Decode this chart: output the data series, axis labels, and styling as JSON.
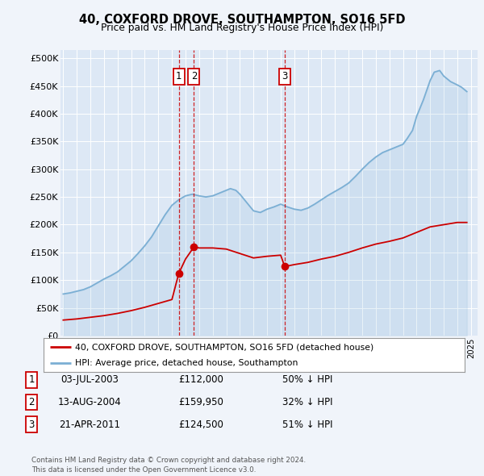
{
  "title": "40, COXFORD DROVE, SOUTHAMPTON, SO16 5FD",
  "subtitle": "Price paid vs. HM Land Registry's House Price Index (HPI)",
  "plot_bg_color": "#dde8f5",
  "fig_bg_color": "#f0f4fa",
  "yticks": [
    0,
    50000,
    100000,
    150000,
    200000,
    250000,
    300000,
    350000,
    400000,
    450000,
    500000
  ],
  "ytick_labels": [
    "£0",
    "£50K",
    "£100K",
    "£150K",
    "£200K",
    "£250K",
    "£300K",
    "£350K",
    "£400K",
    "£450K",
    "£500K"
  ],
  "xlim_start": 1994.8,
  "xlim_end": 2025.5,
  "ylim_min": 0,
  "ylim_max": 515000,
  "sales": [
    {
      "label": "1",
      "year": 2003.5,
      "price": 112000
    },
    {
      "label": "2",
      "year": 2004.62,
      "price": 159950
    },
    {
      "label": "3",
      "year": 2011.3,
      "price": 124500
    }
  ],
  "legend_house_label": "40, COXFORD DROVE, SOUTHAMPTON, SO16 5FD (detached house)",
  "legend_hpi_label": "HPI: Average price, detached house, Southampton",
  "table_rows": [
    {
      "num": "1",
      "date": "03-JUL-2003",
      "price": "£112,000",
      "hpi": "50% ↓ HPI"
    },
    {
      "num": "2",
      "date": "13-AUG-2004",
      "price": "£159,950",
      "hpi": "32% ↓ HPI"
    },
    {
      "num": "3",
      "date": "21-APR-2011",
      "price": "£124,500",
      "hpi": "51% ↓ HPI"
    }
  ],
  "footer": "Contains HM Land Registry data © Crown copyright and database right 2024.\nThis data is licensed under the Open Government Licence v3.0.",
  "house_line_color": "#cc0000",
  "hpi_line_color": "#7bafd4",
  "hpi_years": [
    1995,
    1995.5,
    1996,
    1996.5,
    1997,
    1997.5,
    1998,
    1998.5,
    1999,
    1999.5,
    2000,
    2000.5,
    2001,
    2001.5,
    2002,
    2002.5,
    2003,
    2003.5,
    2004,
    2004.5,
    2005,
    2005.5,
    2006,
    2006.5,
    2007,
    2007.3,
    2007.7,
    2008,
    2008.5,
    2009,
    2009.5,
    2010,
    2010.5,
    2011,
    2011.5,
    2012,
    2012.5,
    2013,
    2013.5,
    2014,
    2014.5,
    2015,
    2015.5,
    2016,
    2016.5,
    2017,
    2017.5,
    2018,
    2018.5,
    2019,
    2019.5,
    2020,
    2020.3,
    2020.7,
    2021,
    2021.5,
    2022,
    2022.3,
    2022.7,
    2023,
    2023.5,
    2024,
    2024.3,
    2024.7
  ],
  "hpi_values": [
    75000,
    77000,
    80000,
    83000,
    88000,
    95000,
    102000,
    108000,
    115000,
    125000,
    135000,
    148000,
    162000,
    178000,
    198000,
    218000,
    235000,
    245000,
    252000,
    255000,
    252000,
    250000,
    252000,
    257000,
    262000,
    265000,
    262000,
    255000,
    240000,
    225000,
    222000,
    228000,
    232000,
    237000,
    232000,
    228000,
    226000,
    230000,
    237000,
    245000,
    253000,
    260000,
    267000,
    275000,
    287000,
    300000,
    312000,
    322000,
    330000,
    335000,
    340000,
    345000,
    355000,
    370000,
    395000,
    425000,
    460000,
    475000,
    478000,
    468000,
    458000,
    452000,
    448000,
    440000
  ],
  "house_years": [
    1995,
    1996,
    1997,
    1998,
    1999,
    2000,
    2001,
    2002,
    2003,
    2003.5,
    2004,
    2004.62,
    2005,
    2006,
    2007,
    2008,
    2009,
    2010,
    2011,
    2011.3,
    2012,
    2013,
    2014,
    2015,
    2016,
    2017,
    2018,
    2019,
    2020,
    2021,
    2022,
    2023,
    2024,
    2024.7
  ],
  "house_values": [
    28000,
    30000,
    33000,
    36000,
    40000,
    45000,
    51000,
    58000,
    65000,
    112000,
    138000,
    159950,
    158000,
    158000,
    156000,
    148000,
    140000,
    143000,
    145000,
    124500,
    128000,
    132000,
    138000,
    143000,
    150000,
    158000,
    165000,
    170000,
    176000,
    186000,
    196000,
    200000,
    204000,
    204000
  ]
}
